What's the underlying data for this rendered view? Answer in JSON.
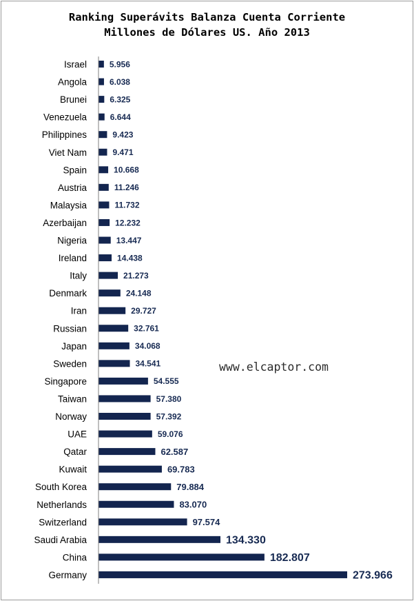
{
  "chart_data": {
    "type": "bar",
    "orientation": "horizontal",
    "title": "Ranking Superávits Balanza Cuenta Corriente",
    "subtitle": "Millones de Dólares US. Año 2013",
    "watermark": "www.elcaptor.com",
    "bar_color": "#13254f",
    "label_color": "#172a52",
    "grid": false,
    "legend": "none",
    "xlim": [
      0,
      380000
    ],
    "categories": [
      "Israel",
      "Angola",
      "Brunei",
      "Venezuela",
      "Philippines",
      "Viet Nam",
      "Spain",
      "Austria",
      "Malaysia",
      "Azerbaijan",
      "Nigeria",
      "Ireland",
      "Italy",
      "Denmark",
      "Iran",
      "Russian",
      "Japan",
      "Sweden",
      "Singapore",
      "Taiwan",
      "Norway",
      "UAE",
      "Qatar",
      "Kuwait",
      "South Korea",
      "Netherlands",
      "Switzerland",
      "Saudi Arabia",
      "China",
      "Germany"
    ],
    "values": [
      5956,
      6038,
      6325,
      6644,
      9423,
      9471,
      10668,
      11246,
      11732,
      12232,
      13447,
      14438,
      21273,
      24148,
      29727,
      32761,
      34068,
      34541,
      54555,
      57380,
      57392,
      59076,
      62587,
      69783,
      79884,
      83070,
      97574,
      134330,
      182807,
      273966
    ],
    "data_labels": [
      "5.956",
      "6.038",
      "6.325",
      "6.644",
      "9.423",
      "9.471",
      "10.668",
      "11.246",
      "11.732",
      "12.232",
      "13.447",
      "14.438",
      "21.273",
      "24.148",
      "29.727",
      "32.761",
      "34.068",
      "34.541",
      "54.555",
      "57.380",
      "57.392",
      "59.076",
      "62.587",
      "69.783",
      "79.884",
      "83.070",
      "97.574",
      "134.330",
      "182.807",
      "273.966"
    ]
  }
}
